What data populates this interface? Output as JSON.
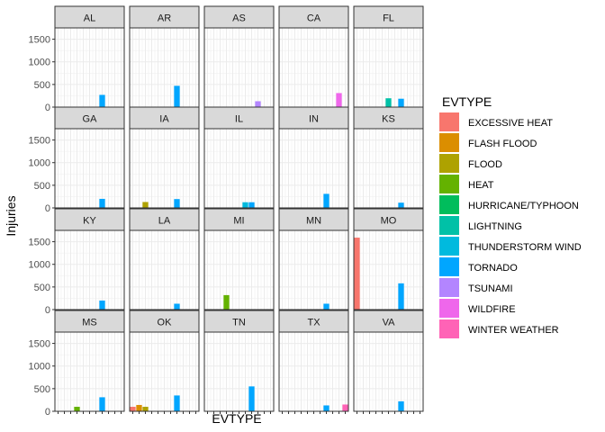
{
  "chart_data": {
    "type": "bar",
    "facet_by": "state",
    "xlabel": "EVTYPE",
    "ylabel": "Injuries",
    "ylim": [
      0,
      1750
    ],
    "yticks": [
      0,
      500,
      1000,
      1500
    ],
    "grid": true,
    "legend_placement": "right",
    "legend": {
      "title": "EVTYPE",
      "items": [
        {
          "label": "EXCESSIVE HEAT",
          "color": "#F8766D"
        },
        {
          "label": "FLASH FLOOD",
          "color": "#DB8E00"
        },
        {
          "label": "FLOOD",
          "color": "#AEA200"
        },
        {
          "label": "HEAT",
          "color": "#64B200"
        },
        {
          "label": "HURRICANE/TYPHOON",
          "color": "#00BD5C"
        },
        {
          "label": "LIGHTNING",
          "color": "#00C1A7"
        },
        {
          "label": "THUNDERSTORM WIND",
          "color": "#00BADE"
        },
        {
          "label": "TORNADO",
          "color": "#00A6FF"
        },
        {
          "label": "TSUNAMI",
          "color": "#B385FF"
        },
        {
          "label": "WILDFIRE",
          "color": "#EF67EB"
        },
        {
          "label": "WINTER WEATHER",
          "color": "#FF63B6"
        }
      ]
    },
    "panels": [
      {
        "state": "AL",
        "bars": [
          {
            "type": "TORNADO",
            "value": 270
          }
        ]
      },
      {
        "state": "AR",
        "bars": [
          {
            "type": "TORNADO",
            "value": 470
          }
        ]
      },
      {
        "state": "AS",
        "bars": [
          {
            "type": "TSUNAMI",
            "value": 130
          }
        ]
      },
      {
        "state": "CA",
        "bars": [
          {
            "type": "WILDFIRE",
            "value": 310
          }
        ]
      },
      {
        "state": "FL",
        "bars": [
          {
            "type": "LIGHTNING",
            "value": 195
          },
          {
            "type": "TORNADO",
            "value": 185
          }
        ]
      },
      {
        "state": "GA",
        "bars": [
          {
            "type": "TORNADO",
            "value": 200
          }
        ]
      },
      {
        "state": "IA",
        "bars": [
          {
            "type": "FLOOD",
            "value": 130
          },
          {
            "type": "TORNADO",
            "value": 195
          }
        ]
      },
      {
        "state": "IL",
        "bars": [
          {
            "type": "THUNDERSTORM WIND",
            "value": 125
          },
          {
            "type": "TORNADO",
            "value": 125
          }
        ]
      },
      {
        "state": "IN",
        "bars": [
          {
            "type": "TORNADO",
            "value": 310
          }
        ]
      },
      {
        "state": "KS",
        "bars": [
          {
            "type": "TORNADO",
            "value": 115
          }
        ]
      },
      {
        "state": "KY",
        "bars": [
          {
            "type": "TORNADO",
            "value": 200
          }
        ]
      },
      {
        "state": "LA",
        "bars": [
          {
            "type": "TORNADO",
            "value": 130
          }
        ]
      },
      {
        "state": "MI",
        "bars": [
          {
            "type": "HEAT",
            "value": 320
          }
        ]
      },
      {
        "state": "MN",
        "bars": [
          {
            "type": "TORNADO",
            "value": 130
          }
        ]
      },
      {
        "state": "MO",
        "bars": [
          {
            "type": "EXCESSIVE HEAT",
            "value": 1590
          },
          {
            "type": "TORNADO",
            "value": 580
          }
        ]
      },
      {
        "state": "MS",
        "bars": [
          {
            "type": "HEAT",
            "value": 100
          },
          {
            "type": "TORNADO",
            "value": 310
          }
        ]
      },
      {
        "state": "OK",
        "bars": [
          {
            "type": "EXCESSIVE HEAT",
            "value": 100
          },
          {
            "type": "FLASH FLOOD",
            "value": 140
          },
          {
            "type": "FLOOD",
            "value": 100
          },
          {
            "type": "TORNADO",
            "value": 350
          }
        ]
      },
      {
        "state": "TN",
        "bars": [
          {
            "type": "TORNADO",
            "value": 550
          }
        ]
      },
      {
        "state": "TX",
        "bars": [
          {
            "type": "TORNADO",
            "value": 130
          },
          {
            "type": "WINTER WEATHER",
            "value": 150
          }
        ]
      },
      {
        "state": "VA",
        "bars": [
          {
            "type": "TORNADO",
            "value": 220
          }
        ]
      }
    ]
  }
}
